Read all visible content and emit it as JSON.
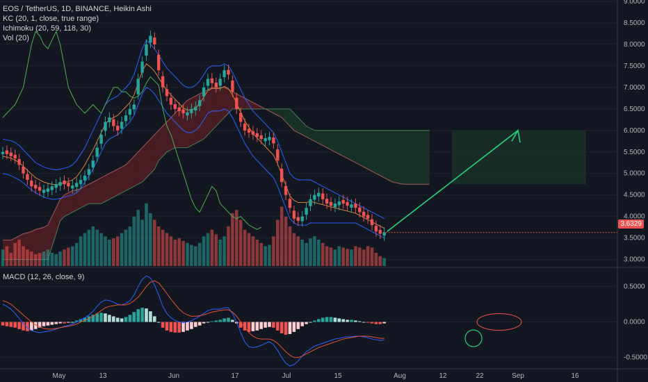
{
  "legend": {
    "title": "EOS / TetherUS, 1D, BINANCE, Heikin Ashi",
    "kc": "KC (20, 1, close, true range)",
    "ichimoku": "Ichimoku (20, 59, 118, 30)",
    "vol": "Vol (20)",
    "macd": "MACD (12, 26, close, 9)"
  },
  "last_price": "3.6329",
  "colors": {
    "bg": "#131722",
    "grid": "#1e222d",
    "up": "#26a69a",
    "down": "#ef5350",
    "kumo_bear": "#5c1f25",
    "kumo_bull": "#1b3b2a",
    "arrow": "#26d07c",
    "kc": "#2962ff",
    "conversion": "#8d6e4a",
    "lagging": "#4caf50"
  },
  "chart_data": [
    {
      "type": "candlestick",
      "title": "EOS / TetherUS, 1D, BINANCE, Heikin Ashi",
      "x_labels": [
        "May",
        "13",
        "Jun",
        "17",
        "Jul",
        "15",
        "Aug",
        "12",
        "22",
        "Sep",
        "16"
      ],
      "y_ticks": [
        "9.0000",
        "8.5000",
        "8.0000",
        "7.5000",
        "7.0000",
        "6.5000",
        "6.0000",
        "5.5000",
        "5.0000",
        "4.5000",
        "4.0000",
        "3.5000",
        "3.0000"
      ],
      "ylim": [
        2.8,
        9.0
      ],
      "close": [
        5.5,
        5.45,
        5.4,
        5.35,
        5.2,
        5.0,
        4.85,
        4.7,
        4.65,
        4.6,
        4.62,
        4.65,
        4.7,
        4.75,
        4.8,
        4.75,
        4.7,
        4.72,
        4.78,
        4.85,
        4.95,
        5.1,
        5.3,
        5.6,
        5.9,
        6.2,
        6.3,
        6.1,
        6.0,
        6.2,
        6.35,
        6.5,
        6.6,
        7.2,
        7.6,
        8.0,
        8.2,
        8.0,
        7.4,
        7.0,
        6.8,
        6.6,
        6.5,
        6.45,
        6.4,
        6.42,
        6.5,
        6.55,
        6.7,
        7.0,
        7.2,
        7.1,
        7.0,
        7.2,
        7.4,
        7.3,
        6.9,
        6.5,
        6.2,
        6.0,
        5.95,
        5.9,
        5.85,
        5.8,
        5.82,
        5.85,
        5.7,
        5.3,
        4.8,
        4.5,
        4.2,
        3.95,
        3.9,
        4.0,
        4.2,
        4.4,
        4.5,
        4.55,
        4.4,
        4.3,
        4.25,
        4.3,
        4.35,
        4.3,
        4.25,
        4.28,
        4.2,
        4.1,
        4.0,
        3.95,
        3.8,
        3.65,
        3.6,
        3.63
      ],
      "volume": [
        0.25,
        0.3,
        0.2,
        0.35,
        0.4,
        0.3,
        0.25,
        0.22,
        0.18,
        0.2,
        0.22,
        0.25,
        0.2,
        0.18,
        0.22,
        0.25,
        0.28,
        0.3,
        0.35,
        0.45,
        0.5,
        0.55,
        0.6,
        0.55,
        0.5,
        0.45,
        0.4,
        0.42,
        0.45,
        0.5,
        0.55,
        0.6,
        0.75,
        0.85,
        0.7,
        0.95,
        0.8,
        0.7,
        0.6,
        0.55,
        0.5,
        0.45,
        0.4,
        0.42,
        0.38,
        0.35,
        0.32,
        0.3,
        0.35,
        0.45,
        0.5,
        0.55,
        0.48,
        0.4,
        0.45,
        0.6,
        0.8,
        0.85,
        0.7,
        0.55,
        0.5,
        0.45,
        0.4,
        0.35,
        0.3,
        0.32,
        0.45,
        0.7,
        0.9,
        0.75,
        0.6,
        0.5,
        0.45,
        0.4,
        0.35,
        0.42,
        0.45,
        0.4,
        0.35,
        0.3,
        0.28,
        0.25,
        0.3,
        0.28,
        0.26,
        0.25,
        0.3,
        0.28,
        0.25,
        0.3,
        0.28,
        0.2,
        0.15,
        0.12
      ],
      "kc_upper": [
        5.8,
        5.78,
        5.76,
        5.72,
        5.65,
        5.55,
        5.45,
        5.35,
        5.25,
        5.2,
        5.15,
        5.12,
        5.1,
        5.08,
        5.1,
        5.12,
        5.15,
        5.2,
        5.3,
        5.45,
        5.6,
        5.8,
        6.0,
        6.2,
        6.4,
        6.6,
        6.7,
        6.75,
        6.8,
        6.9,
        7.0,
        7.1,
        7.3,
        7.6,
        7.9,
        8.1,
        8.0,
        7.9,
        7.75,
        7.6,
        7.45,
        7.35,
        7.25,
        7.15,
        7.05,
        7.0,
        7.0,
        7.05,
        7.15,
        7.3,
        7.45,
        7.5,
        7.5,
        7.5,
        7.55,
        7.5,
        7.35,
        7.15,
        6.95,
        6.75,
        6.6,
        6.45,
        6.35,
        6.25,
        6.15,
        6.05,
        5.95,
        5.75,
        5.5,
        5.25,
        5.0,
        4.9,
        4.85,
        4.85,
        4.85,
        4.85,
        4.8,
        4.75,
        4.7,
        4.65,
        4.6,
        4.55,
        4.5,
        4.45,
        4.4,
        4.35,
        4.3,
        4.25,
        4.2,
        4.15,
        4.1,
        4.05,
        4.0,
        3.95
      ],
      "kc_lower": [
        5.0,
        4.98,
        4.95,
        4.9,
        4.85,
        4.78,
        4.7,
        4.62,
        4.55,
        4.5,
        4.45,
        4.42,
        4.4,
        4.4,
        4.42,
        4.45,
        4.48,
        4.5,
        4.55,
        4.65,
        4.8,
        4.95,
        5.1,
        5.3,
        5.5,
        5.7,
        5.8,
        5.85,
        5.9,
        6.0,
        6.1,
        6.2,
        6.35,
        6.6,
        6.85,
        7.0,
        6.95,
        6.85,
        6.7,
        6.55,
        6.4,
        6.3,
        6.2,
        6.1,
        6.0,
        5.95,
        5.95,
        6.0,
        6.1,
        6.25,
        6.4,
        6.45,
        6.45,
        6.45,
        6.5,
        6.45,
        6.3,
        6.1,
        5.9,
        5.7,
        5.55,
        5.4,
        5.3,
        5.2,
        5.1,
        5.0,
        4.9,
        4.7,
        4.45,
        4.2,
        3.95,
        3.85,
        3.8,
        3.8,
        3.8,
        3.85,
        3.85,
        3.85,
        3.85,
        3.85,
        3.85,
        3.85,
        3.85,
        3.85,
        3.85,
        3.85,
        3.85,
        3.8,
        3.75,
        3.7,
        3.65,
        3.6,
        3.55,
        3.5
      ],
      "lagging": [
        6.3,
        6.4,
        6.5,
        6.6,
        6.8,
        7.0,
        7.5,
        8.0,
        8.3,
        8.2,
        8.0,
        7.9,
        8.1,
        8.3,
        8.0,
        7.5,
        7.0,
        6.8,
        6.6,
        6.5,
        6.4,
        6.5,
        6.6,
        6.5,
        6.4,
        6.6,
        6.8,
        7.0,
        7.0,
        6.9,
        6.9,
        6.8,
        6.75,
        6.8,
        6.9,
        7.1,
        7.25,
        7.15,
        7.05,
        6.5,
        6.1,
        5.9,
        5.6,
        5.3,
        5.0,
        4.7,
        4.4,
        4.2,
        4.1,
        4.3,
        4.5,
        4.7,
        4.6,
        4.3,
        4.2,
        4.1,
        4.0,
        3.95,
        4.0,
        3.9,
        3.8,
        3.75,
        3.7,
        3.75
      ],
      "cloud_a": [
        3.45,
        3.45,
        3.45,
        3.5,
        3.55,
        3.6,
        3.62,
        3.65,
        3.7,
        3.72,
        3.75,
        3.8,
        4.0,
        4.2,
        4.4,
        4.5,
        4.55,
        4.6,
        4.62,
        4.65,
        4.7,
        4.75,
        4.8,
        4.85,
        4.9,
        4.95,
        5.0,
        5.05,
        5.1,
        5.15,
        5.2,
        5.3,
        5.4,
        5.5,
        5.6,
        5.7,
        5.8,
        5.9,
        6.0,
        6.1,
        6.2,
        6.3,
        6.4,
        6.5,
        6.6,
        6.7,
        6.75,
        6.8,
        6.85,
        6.9,
        6.95,
        7.0,
        7.0,
        7.0,
        7.0,
        6.95,
        6.9,
        6.85,
        6.8,
        6.75,
        6.7,
        6.65,
        6.6,
        6.55,
        6.5,
        6.45,
        6.4,
        6.35,
        6.3,
        6.2,
        6.1,
        6.0,
        5.95,
        5.9,
        5.85,
        5.8,
        5.75,
        5.7,
        5.65,
        5.6,
        5.55,
        5.5,
        5.45,
        5.4,
        5.35,
        5.3,
        5.25,
        5.2,
        5.15,
        5.1,
        5.05,
        5.0,
        4.95,
        4.9,
        4.85,
        4.8,
        4.78,
        4.76,
        4.75,
        4.75,
        4.75,
        4.75,
        4.75,
        4.75,
        4.75
      ],
      "cloud_b": [
        3.0,
        3.0,
        3.0,
        3.0,
        3.0,
        3.0,
        3.0,
        3.0,
        3.0,
        3.0,
        3.0,
        3.0,
        3.3,
        3.6,
        3.9,
        4.0,
        4.05,
        4.1,
        4.15,
        4.2,
        4.25,
        4.3,
        4.3,
        4.3,
        4.3,
        4.35,
        4.4,
        4.45,
        4.5,
        4.55,
        4.6,
        4.65,
        4.7,
        4.75,
        4.8,
        4.9,
        5.0,
        5.1,
        5.3,
        5.4,
        5.5,
        5.55,
        5.6,
        5.6,
        5.6,
        5.6,
        5.65,
        5.7,
        5.75,
        5.8,
        5.9,
        6.0,
        6.1,
        6.2,
        6.3,
        6.4,
        6.5,
        6.5,
        6.5,
        6.5,
        6.5,
        6.5,
        6.5,
        6.5,
        6.5,
        6.5,
        6.5,
        6.5,
        6.5,
        6.5,
        6.5,
        6.4,
        6.3,
        6.2,
        6.1,
        6.05,
        6.0,
        6.0,
        6.0,
        6.0,
        6.0,
        6.0,
        6.0,
        6.0,
        6.0,
        6.0,
        6.0,
        6.0,
        6.0,
        6.0,
        6.0,
        6.0,
        6.0,
        6.0,
        6.0,
        6.0,
        6.0,
        6.0,
        6.0,
        6.0,
        6.0,
        6.0,
        6.0,
        6.0,
        6.0
      ],
      "annotation": {
        "from": 3.65,
        "to": 6.0
      }
    },
    {
      "type": "macd",
      "title": "MACD (12, 26, close, 9)",
      "y_ticks": [
        "0.5000",
        "0.0000",
        "-0.5000"
      ],
      "ylim": [
        -0.65,
        0.7
      ],
      "hist": [
        -0.05,
        -0.06,
        -0.07,
        -0.08,
        -0.1,
        -0.12,
        -0.13,
        -0.12,
        -0.1,
        -0.08,
        -0.06,
        -0.05,
        -0.04,
        -0.03,
        -0.02,
        -0.02,
        -0.01,
        0.0,
        0.02,
        0.04,
        0.06,
        0.08,
        0.1,
        0.12,
        0.13,
        0.12,
        0.1,
        0.08,
        0.06,
        0.05,
        0.07,
        0.1,
        0.14,
        0.18,
        0.2,
        0.19,
        0.15,
        0.08,
        0.0,
        -0.08,
        -0.12,
        -0.14,
        -0.15,
        -0.15,
        -0.14,
        -0.12,
        -0.1,
        -0.07,
        -0.05,
        -0.02,
        0.0,
        0.01,
        0.02,
        0.03,
        0.05,
        0.06,
        0.03,
        -0.02,
        -0.08,
        -0.12,
        -0.14,
        -0.13,
        -0.12,
        -0.1,
        -0.08,
        -0.07,
        -0.08,
        -0.12,
        -0.16,
        -0.18,
        -0.17,
        -0.14,
        -0.1,
        -0.06,
        -0.03,
        0.0,
        0.02,
        0.04,
        0.06,
        0.07,
        0.07,
        0.06,
        0.05,
        0.04,
        0.03,
        0.03,
        0.02,
        0.01,
        0.0,
        -0.01,
        -0.02,
        -0.03,
        -0.03,
        -0.02
      ],
      "macd": [
        0.25,
        0.22,
        0.18,
        0.12,
        0.05,
        -0.02,
        -0.08,
        -0.12,
        -0.14,
        -0.15,
        -0.14,
        -0.13,
        -0.12,
        -0.1,
        -0.08,
        -0.06,
        -0.05,
        -0.03,
        0.0,
        0.03,
        0.06,
        0.1,
        0.15,
        0.22,
        0.28,
        0.31,
        0.3,
        0.28,
        0.25,
        0.24,
        0.26,
        0.3,
        0.38,
        0.5,
        0.6,
        0.65,
        0.62,
        0.52,
        0.38,
        0.22,
        0.12,
        0.06,
        0.02,
        0.0,
        -0.01,
        0.0,
        0.02,
        0.05,
        0.08,
        0.12,
        0.16,
        0.18,
        0.18,
        0.18,
        0.2,
        0.2,
        0.12,
        0.0,
        -0.15,
        -0.28,
        -0.35,
        -0.36,
        -0.35,
        -0.33,
        -0.3,
        -0.28,
        -0.32,
        -0.4,
        -0.5,
        -0.58,
        -0.62,
        -0.6,
        -0.55,
        -0.48,
        -0.42,
        -0.38,
        -0.34,
        -0.32,
        -0.3,
        -0.28,
        -0.26,
        -0.24,
        -0.23,
        -0.22,
        -0.21,
        -0.21,
        -0.2,
        -0.2,
        -0.21,
        -0.22,
        -0.24,
        -0.25,
        -0.26,
        -0.25
      ],
      "signal": [
        0.3,
        0.28,
        0.25,
        0.2,
        0.15,
        0.1,
        0.05,
        0.0,
        -0.04,
        -0.07,
        -0.09,
        -0.1,
        -0.1,
        -0.09,
        -0.08,
        -0.07,
        -0.06,
        -0.05,
        -0.03,
        0.0,
        0.02,
        0.05,
        0.08,
        0.12,
        0.16,
        0.2,
        0.22,
        0.23,
        0.24,
        0.24,
        0.24,
        0.26,
        0.3,
        0.35,
        0.42,
        0.5,
        0.56,
        0.58,
        0.55,
        0.48,
        0.4,
        0.32,
        0.25,
        0.18,
        0.13,
        0.1,
        0.08,
        0.08,
        0.09,
        0.1,
        0.12,
        0.14,
        0.15,
        0.16,
        0.17,
        0.17,
        0.14,
        0.08,
        0.0,
        -0.08,
        -0.15,
        -0.2,
        -0.23,
        -0.24,
        -0.24,
        -0.24,
        -0.26,
        -0.3,
        -0.36,
        -0.42,
        -0.47,
        -0.5,
        -0.5,
        -0.48,
        -0.45,
        -0.42,
        -0.39,
        -0.36,
        -0.34,
        -0.32,
        -0.3,
        -0.28,
        -0.26,
        -0.24,
        -0.23,
        -0.22,
        -0.21,
        -0.2,
        -0.2,
        -0.2,
        -0.21,
        -0.22,
        -0.23,
        -0.23
      ],
      "projection": [
        0.0,
        0.1,
        0.02,
        0.0,
        -0.02
      ]
    }
  ]
}
